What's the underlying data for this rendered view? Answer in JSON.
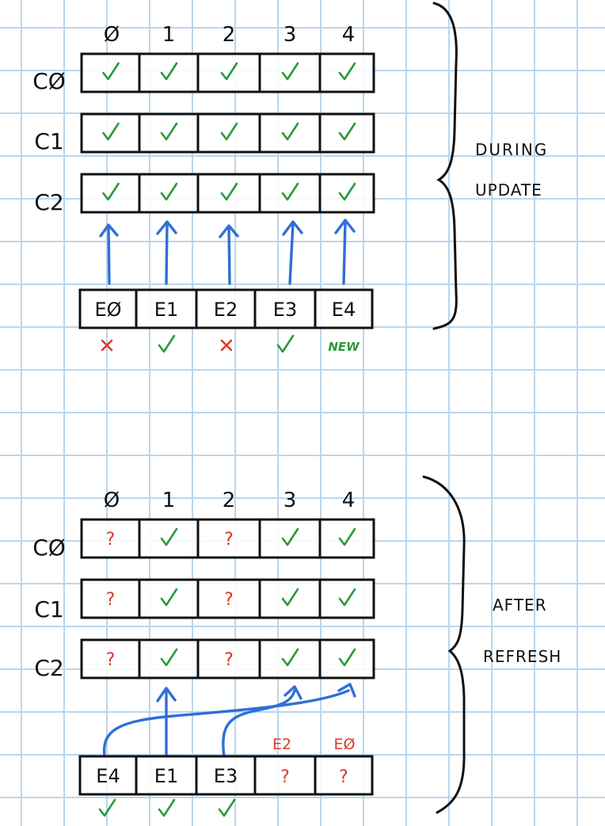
{
  "colors": {
    "grid": "#b9d6ee",
    "ink": "#111111",
    "ok": "#2a9a3a",
    "bad": "#d83a2a",
    "arrow": "#2f6fd6"
  },
  "top": {
    "columns": [
      "Ø",
      "1",
      "2",
      "3",
      "4"
    ],
    "rows": [
      {
        "label": "CØ",
        "cells": [
          "check",
          "check",
          "check",
          "check",
          "check"
        ]
      },
      {
        "label": "C1",
        "cells": [
          "check",
          "check",
          "check",
          "check",
          "check"
        ]
      },
      {
        "label": "C2",
        "cells": [
          "check",
          "check",
          "check",
          "check",
          "check"
        ]
      }
    ],
    "entries": [
      "EØ",
      "E1",
      "E2",
      "E3",
      "E4"
    ],
    "statuses": [
      {
        "kind": "cross"
      },
      {
        "kind": "check"
      },
      {
        "kind": "cross"
      },
      {
        "kind": "check"
      },
      {
        "kind": "text",
        "text": "NEW"
      }
    ],
    "brace_label": [
      "DURING",
      "UPDATE"
    ]
  },
  "bottom": {
    "columns": [
      "Ø",
      "1",
      "2",
      "3",
      "4"
    ],
    "rows": [
      {
        "label": "CØ",
        "cells": [
          "question",
          "check",
          "question",
          "check",
          "check"
        ]
      },
      {
        "label": "C1",
        "cells": [
          "question",
          "check",
          "question",
          "check",
          "check"
        ]
      },
      {
        "label": "C2",
        "cells": [
          "question",
          "check",
          "question",
          "check",
          "check"
        ]
      }
    ],
    "entries": [
      "E4",
      "E1",
      "E3",
      "?",
      "?"
    ],
    "missing_labels": [
      "E2",
      "EØ"
    ],
    "statuses": [
      {
        "kind": "check"
      },
      {
        "kind": "check"
      },
      {
        "kind": "check"
      }
    ],
    "brace_label": [
      "AFTER",
      "REFRESH"
    ]
  }
}
